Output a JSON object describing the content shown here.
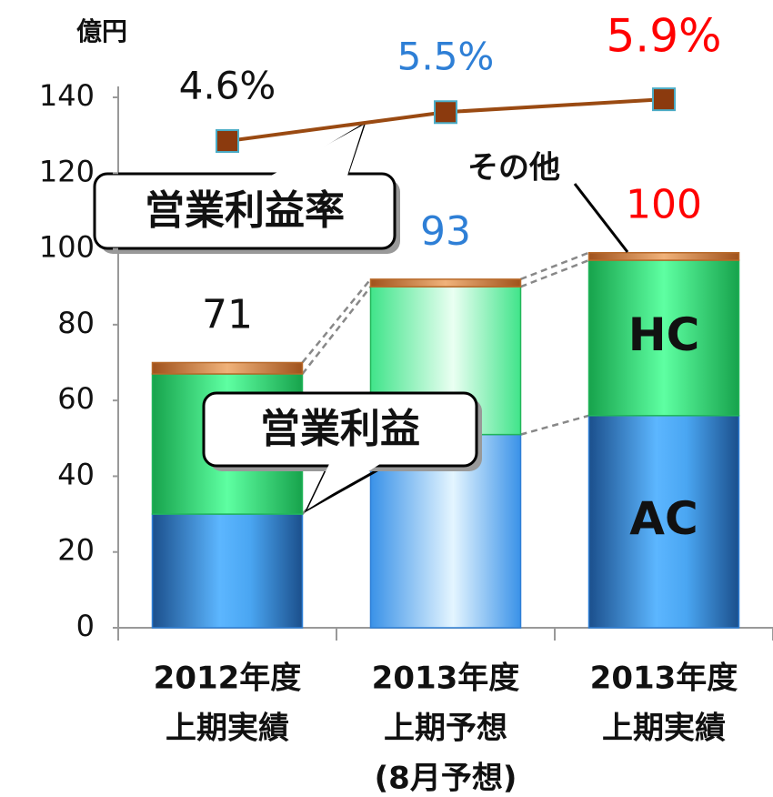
{
  "chart_data": {
    "type": "bar",
    "unit_label": "億円",
    "categories": [
      [
        "2012年度",
        "上期実績"
      ],
      [
        "2013年度",
        "上期予想",
        "(8月予想)"
      ],
      [
        "2013年度",
        "上期実績"
      ]
    ],
    "stacked": true,
    "series": [
      {
        "name": "AC",
        "color": "#2e7fd6",
        "values": [
          30,
          51,
          56
        ]
      },
      {
        "name": "HC",
        "color": "#22b65a",
        "values": [
          37,
          39,
          41
        ]
      },
      {
        "name": "その他",
        "color": "#b86a2a",
        "values": [
          3,
          2,
          2
        ]
      },
      {
        "name": "営業利益率",
        "type": "line",
        "axis": "y2",
        "color": "#9a4a12",
        "marker_color": "#8b3a0e",
        "marker_edge": "#4bacc6",
        "values": [
          4.6,
          5.5,
          5.9
        ],
        "value_labels": [
          "4.6%",
          "5.5%",
          "5.9%"
        ],
        "label_colors": [
          "#111111",
          "#2e7fd6",
          "#ff0000"
        ]
      }
    ],
    "totals": [
      71,
      93,
      100
    ],
    "total_colors": [
      "#111111",
      "#2e7fd6",
      "#ff0000"
    ],
    "annotations": {
      "bar_callout": "営業利益"
    },
    "ylim": [
      0,
      140
    ],
    "yticks": [
      0,
      20,
      40,
      60,
      80,
      100,
      120,
      140
    ],
    "y2lim": [
      -10.55,
      5.96
    ],
    "grid": false
  }
}
